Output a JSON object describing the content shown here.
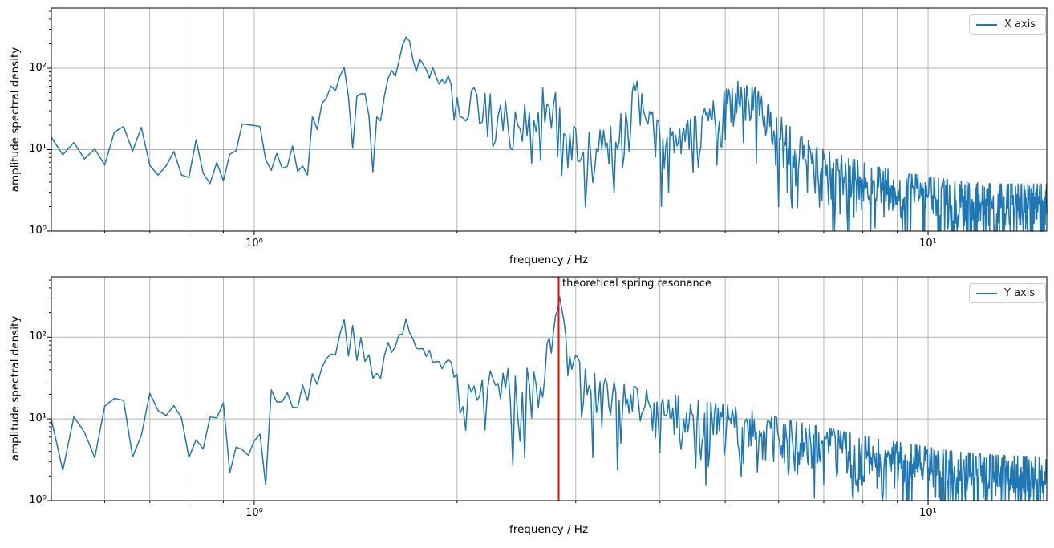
{
  "figure": {
    "background": "#ffffff",
    "axis_color": "#000000",
    "grid_color": "#b0b0b0"
  },
  "chart_data": [
    {
      "type": "line",
      "subplot": "top",
      "title": "",
      "xlabel": "frequency / Hz",
      "ylabel": "amplitude spectral density",
      "xscale": "log",
      "yscale": "log",
      "xlim": [
        0.5,
        15
      ],
      "ylim": [
        1,
        548
      ],
      "x_major_ticks": [
        1,
        10
      ],
      "x_tick_labels": [
        "10⁰",
        "10¹"
      ],
      "x_minor_ticks": [
        0.6,
        0.7,
        0.8,
        0.9,
        2,
        3,
        4,
        5,
        6,
        7,
        8,
        9
      ],
      "y_major_ticks": [
        1,
        10,
        100
      ],
      "y_tick_labels": [
        "10⁰",
        "10¹",
        "10²"
      ],
      "grid": {
        "x": "major+minor",
        "y": "major"
      },
      "legend": {
        "label": "X axis",
        "position": "upper right"
      },
      "line_color": "#1f77b4",
      "line_width": 1.5,
      "peaks_readout": [
        [
          1.35,
          100
        ],
        [
          1.68,
          270
        ],
        [
          2.77,
          55
        ],
        [
          3.7,
          50
        ],
        [
          5.3,
          60
        ]
      ],
      "noise_floor_left": 10,
      "noise_floor_right": 2,
      "series_envelope": [
        [
          0.5,
          10
        ],
        [
          0.62,
          12
        ],
        [
          0.75,
          9
        ],
        [
          0.84,
          7
        ],
        [
          0.92,
          12
        ],
        [
          1.0,
          11
        ],
        [
          1.1,
          9.5
        ],
        [
          1.2,
          13
        ],
        [
          1.3,
          35
        ],
        [
          1.35,
          85
        ],
        [
          1.4,
          55
        ],
        [
          1.47,
          45
        ],
        [
          1.53,
          22
        ],
        [
          1.58,
          45
        ],
        [
          1.63,
          95
        ],
        [
          1.68,
          255
        ],
        [
          1.73,
          150
        ],
        [
          1.8,
          80
        ],
        [
          1.9,
          55
        ],
        [
          2.0,
          42
        ],
        [
          2.15,
          30
        ],
        [
          2.3,
          25
        ],
        [
          2.45,
          18
        ],
        [
          2.6,
          22
        ],
        [
          2.7,
          35
        ],
        [
          2.77,
          52
        ],
        [
          2.85,
          20
        ],
        [
          3.0,
          10
        ],
        [
          3.2,
          9
        ],
        [
          3.45,
          12
        ],
        [
          3.6,
          25
        ],
        [
          3.7,
          46
        ],
        [
          3.8,
          25
        ],
        [
          3.95,
          13
        ],
        [
          4.2,
          10
        ],
        [
          4.5,
          14
        ],
        [
          4.8,
          22
        ],
        [
          5.05,
          32
        ],
        [
          5.3,
          50
        ],
        [
          5.55,
          32
        ],
        [
          5.8,
          20
        ],
        [
          6.1,
          13
        ],
        [
          6.5,
          8
        ],
        [
          7.0,
          5.5
        ],
        [
          7.6,
          4.5
        ],
        [
          8.2,
          3.6
        ],
        [
          9.0,
          3.0
        ],
        [
          10,
          2.6
        ],
        [
          11,
          2.3
        ],
        [
          12.5,
          2.1
        ],
        [
          15,
          2.1
        ]
      ],
      "noise": {
        "model": "rayleigh",
        "df_hz": 0.02,
        "seed": 20,
        "median_norm": 0.8325,
        "ratio_clamp": [
          0.12,
          1.8
        ],
        "peak_damping": {
          "threshold": 35,
          "slope": 1.1,
          "min_w": 0.15
        }
      }
    },
    {
      "type": "line",
      "subplot": "bottom",
      "title": "",
      "xlabel": "frequency / Hz",
      "ylabel": "amplitude spectral density",
      "xscale": "log",
      "yscale": "log",
      "xlim": [
        0.5,
        15
      ],
      "ylim": [
        1,
        548
      ],
      "x_major_ticks": [
        1,
        10
      ],
      "x_tick_labels": [
        "10⁰",
        "10¹"
      ],
      "x_minor_ticks": [
        0.6,
        0.7,
        0.8,
        0.9,
        2,
        3,
        4,
        5,
        6,
        7,
        8,
        9
      ],
      "y_major_ticks": [
        1,
        10,
        100
      ],
      "y_tick_labels": [
        "10⁰",
        "10¹",
        "10²"
      ],
      "grid": {
        "x": "major+minor",
        "y": "major"
      },
      "legend": {
        "label": "Y axis",
        "position": "upper right"
      },
      "line_color": "#1f77b4",
      "line_width": 1.5,
      "peaks_readout": [
        [
          1.35,
          270
        ],
        [
          1.68,
          230
        ],
        [
          2.86,
          330
        ]
      ],
      "noise_floor_left": 12,
      "noise_floor_right": 2,
      "annotation": {
        "text": "theoretical spring resonance",
        "frequency_hz": 2.83,
        "line_color": "#ff0000"
      },
      "series_envelope": [
        [
          0.5,
          11
        ],
        [
          0.56,
          7
        ],
        [
          0.65,
          12
        ],
        [
          0.75,
          11
        ],
        [
          0.85,
          13
        ],
        [
          0.95,
          6
        ],
        [
          1.05,
          14
        ],
        [
          1.15,
          20
        ],
        [
          1.25,
          30
        ],
        [
          1.32,
          95
        ],
        [
          1.36,
          160
        ],
        [
          1.41,
          95
        ],
        [
          1.48,
          40
        ],
        [
          1.55,
          45
        ],
        [
          1.62,
          85
        ],
        [
          1.68,
          150
        ],
        [
          1.74,
          85
        ],
        [
          1.82,
          48
        ],
        [
          1.92,
          50
        ],
        [
          2.02,
          35
        ],
        [
          2.15,
          26
        ],
        [
          2.3,
          24
        ],
        [
          2.45,
          22
        ],
        [
          2.6,
          30
        ],
        [
          2.7,
          48
        ],
        [
          2.78,
          115
        ],
        [
          2.84,
          290
        ],
        [
          2.89,
          140
        ],
        [
          2.96,
          62
        ],
        [
          3.05,
          32
        ],
        [
          3.2,
          20
        ],
        [
          3.4,
          16
        ],
        [
          3.65,
          14
        ],
        [
          3.9,
          12
        ],
        [
          4.2,
          11
        ],
        [
          4.5,
          9.5
        ],
        [
          4.9,
          8.5
        ],
        [
          5.3,
          7.5
        ],
        [
          5.7,
          6.5
        ],
        [
          6.1,
          5.5
        ],
        [
          6.6,
          4.8
        ],
        [
          7.2,
          4.2
        ],
        [
          7.8,
          3.6
        ],
        [
          8.5,
          3.1
        ],
        [
          9.2,
          2.8
        ],
        [
          10,
          2.5
        ],
        [
          11,
          2.2
        ],
        [
          12.5,
          2.0
        ],
        [
          15,
          1.9
        ]
      ],
      "noise": {
        "model": "rayleigh",
        "df_hz": 0.02,
        "seed": 77,
        "median_norm": 0.8325,
        "ratio_clamp": [
          0.12,
          1.8
        ],
        "peak_damping": {
          "threshold": 35,
          "slope": 1.1,
          "min_w": 0.15
        }
      }
    }
  ]
}
